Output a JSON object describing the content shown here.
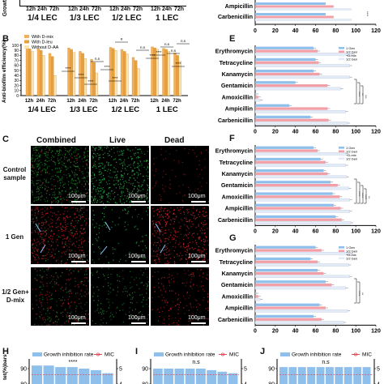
{
  "panel_letters": {
    "b": "B",
    "c": "C",
    "e": "E",
    "f": "F",
    "g": "G",
    "h": "H",
    "i": "I",
    "j": "J"
  },
  "top_strip": {
    "lec_groups": [
      "1/4 LEC",
      "1/3 LEC",
      "1/2 LEC",
      "1 LEC"
    ],
    "times": [
      "12h",
      "24h",
      "72h"
    ],
    "ylabel_fragment": "Growt"
  },
  "colors": {
    "dmix": "#f5b057",
    "dleu": "#e8a03c",
    "nodaa": "#fbe3b4",
    "gen1": "#8fc0ec",
    "half_gen": "#f2a0a8",
    "dmix_gen": "#e3ebf7",
    "accent_red": "#e44d5a"
  },
  "chart_data": [
    {
      "type": "bar",
      "panel": "B",
      "ylabel": "Anti-biofilm efficiency(%)",
      "ylim": [
        0,
        100
      ],
      "yticks": [
        0,
        10,
        20,
        30,
        40,
        50,
        60,
        70,
        80,
        90,
        100
      ],
      "groups": [
        "1/4 LEC",
        "1/3 LEC",
        "1/2 LEC",
        "1 LEC"
      ],
      "categories": [
        "12h",
        "24h",
        "72h",
        "12h",
        "24h",
        "72h",
        "12h",
        "24h",
        "72h",
        "12h",
        "24h",
        "72h"
      ],
      "legend": {
        "entries": [
          "With D-mix",
          "With D-leu",
          "Without D-AA"
        ],
        "position": "top-left"
      },
      "series": [
        {
          "name": "With D-mix",
          "values": [
            96,
            93,
            84,
            95,
            88,
            72,
            96,
            92,
            76,
            97,
            94,
            85
          ]
        },
        {
          "name": "With D-leu",
          "values": [
            93,
            90,
            78,
            92,
            84,
            66,
            94,
            88,
            70,
            95,
            92,
            80
          ]
        },
        {
          "name": "Without D-AA",
          "values": [
            88,
            80,
            40,
            86,
            74,
            45,
            90,
            83,
            54,
            92,
            88,
            68
          ]
        }
      ],
      "annotations": [
        "****",
        "****",
        "****",
        "n.s",
        "****",
        "****",
        "#",
        "n.s",
        "****",
        "****",
        "n.s",
        "n.s",
        "****",
        "n.s"
      ]
    },
    {
      "type": "bar",
      "panel": "D",
      "orientation": "horizontal",
      "categories": [
        "Ampicillin",
        "Carbenicillin"
      ],
      "xlim": [
        0,
        120
      ],
      "xticks": [
        0,
        20,
        40,
        60,
        80,
        100,
        120
      ],
      "annotations": [
        "****"
      ]
    },
    {
      "type": "bar",
      "panel": "E",
      "orientation": "horizontal",
      "categories": [
        "Erythromycin",
        "Tetracycline",
        "Kanamycin",
        "Gentamicin",
        "Amoxicillin",
        "Ampicillin",
        "Carbenicillin"
      ],
      "xlim": [
        0,
        120
      ],
      "xticks": [
        0,
        20,
        40,
        60,
        80,
        100,
        120
      ],
      "legend": {
        "entries": [
          "1 Gen",
          "1/2 Gen",
          "+D-mix",
          "1/2 Gen"
        ],
        "position": "top-right"
      },
      "series": [
        {
          "name": "1 Gen",
          "values": [
            58,
            60,
            58,
            40,
            1,
            34,
            55
          ]
        },
        {
          "name": "1/2 Gen",
          "values": [
            62,
            63,
            64,
            72,
            3,
            72,
            73
          ]
        },
        {
          "name": "+D-mix 1/2 Gen",
          "values": [
            96,
            94,
            94,
            85,
            5,
            90,
            92
          ]
        }
      ],
      "annotations": [
        "****",
        "**",
        "***"
      ]
    },
    {
      "type": "bar",
      "panel": "F",
      "orientation": "horizontal",
      "categories": [
        "Erythromycin",
        "Tetracycline",
        "Kanamycin",
        "Gentamicin",
        "Amoxicillin",
        "Ampicillin",
        "Carbenicillin"
      ],
      "xlim": [
        0,
        120
      ],
      "xticks": [
        0,
        20,
        40,
        60,
        80,
        100,
        120
      ],
      "legend": {
        "entries": [
          "1 Gen",
          "1/2 Gen",
          "+D-mix",
          "1/2 Gen"
        ],
        "position": "top-right"
      },
      "series": [
        {
          "name": "1 Gen",
          "values": [
            58,
            65,
            68,
            75,
            77,
            78,
            80
          ]
        },
        {
          "name": "1/2 Gen",
          "values": [
            62,
            70,
            72,
            82,
            84,
            85,
            86
          ]
        },
        {
          "name": "+D-mix 1/2 Gen",
          "values": [
            90,
            90,
            91,
            93,
            94,
            94,
            95
          ]
        }
      ],
      "annotations": [
        "****",
        "****",
        "****",
        "**"
      ]
    },
    {
      "type": "bar",
      "panel": "G",
      "orientation": "horizontal",
      "categories": [
        "Erythromycin",
        "Tetracycline",
        "Kanamycin",
        "Gentamicin",
        "Amoxicillin",
        "Ampicillin",
        "Carbenicillin"
      ],
      "xlim": [
        0,
        120
      ],
      "xticks": [
        0,
        20,
        40,
        60,
        80,
        100,
        120
      ],
      "legend": {
        "entries": [
          "1 Gen",
          "1/2 Gen",
          "+D-mix",
          "1/2 Gen"
        ],
        "position": "top-right"
      },
      "series": [
        {
          "name": "1 Gen",
          "values": [
            60,
            55,
            62,
            70,
            1,
            64,
            58
          ]
        },
        {
          "name": "1/2 Gen",
          "values": [
            66,
            62,
            68,
            76,
            3,
            70,
            66
          ]
        },
        {
          "name": "+D-mix 1/2 Gen",
          "values": [
            95,
            93,
            94,
            90,
            5,
            92,
            88
          ]
        }
      ],
      "annotations": [
        "****",
        "**"
      ]
    },
    {
      "type": "bar",
      "panel": "H",
      "legend": {
        "entries": [
          "Growth inhibition rate",
          "MIC"
        ],
        "position": "top"
      },
      "ylabel_fragment": "tet(%)bars",
      "ylim": [
        80,
        100
      ],
      "yticks": [
        80,
        90
      ],
      "y2ticks": [
        4,
        5
      ],
      "values": [
        92,
        92,
        91,
        91,
        90,
        89,
        87
      ],
      "annotations": [
        "****"
      ]
    },
    {
      "type": "bar",
      "panel": "I",
      "legend": {
        "entries": [
          "Growth inhibition rate",
          "MIC"
        ],
        "position": "top"
      },
      "ylim": [
        80,
        100
      ],
      "yticks": [
        80,
        90
      ],
      "y2ticks": [
        4,
        5
      ],
      "values": [
        90,
        90,
        90,
        90,
        90,
        89,
        88,
        87
      ],
      "annotations": [
        "n.s"
      ]
    },
    {
      "type": "bar",
      "panel": "J",
      "legend": {
        "entries": [
          "Growth inhibition rate",
          "MIC"
        ],
        "position": "top"
      },
      "ylim": [
        80,
        100
      ],
      "yticks": [
        80,
        90
      ],
      "y2ticks": [
        4,
        5
      ],
      "values": [
        91,
        91,
        91,
        91,
        91,
        91,
        91,
        91,
        91,
        91
      ],
      "annotations": [
        "n.s"
      ]
    }
  ],
  "microscopy": {
    "columns": [
      "Combined",
      "Live",
      "Dead"
    ],
    "rows": [
      "Control sample",
      "1 Gen",
      "1/2 Gen+ D-mix"
    ],
    "scale": "100μm"
  }
}
